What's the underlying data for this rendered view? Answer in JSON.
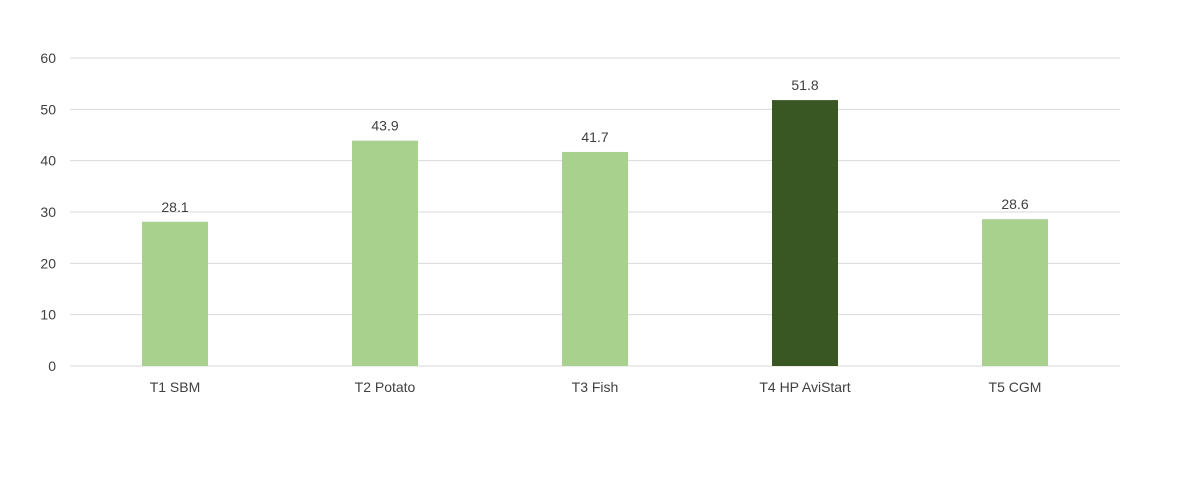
{
  "chart_data": {
    "type": "bar",
    "categories": [
      "T1 SBM",
      "T2 Potato",
      "T3 Fish",
      "T4 HP AviStart",
      "T5 CGM"
    ],
    "values": [
      28.1,
      43.9,
      41.7,
      51.8,
      28.6
    ],
    "data_labels": [
      "28.1",
      "43.9",
      "41.7",
      "51.8",
      "28.6"
    ],
    "yticks": [
      "0",
      "10",
      "20",
      "30",
      "40",
      "50",
      "60"
    ],
    "ylim": [
      0,
      60
    ],
    "title": "",
    "xlabel": "",
    "ylabel": "",
    "grid": true,
    "legend": "none",
    "colors": {
      "default_bar": "#a9d18e",
      "highlight_bar": "#385723",
      "grid": "#d9d9d9",
      "text": "#404040"
    },
    "highlight_index": 3
  }
}
